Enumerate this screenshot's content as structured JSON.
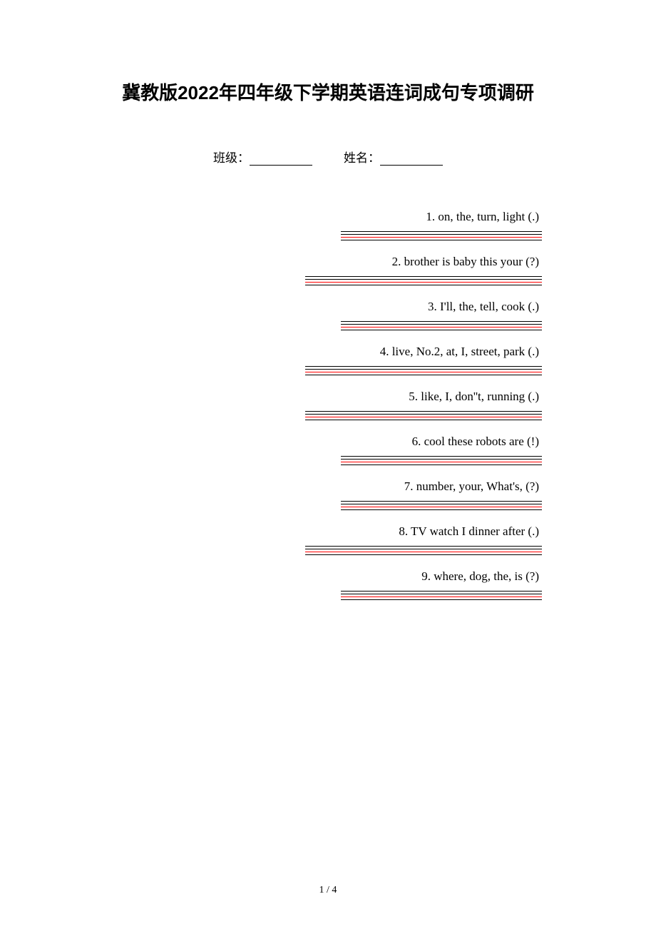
{
  "title": "冀教版2022年四年级下学期英语连词成句专项调研",
  "fields": {
    "class_label": "班级：",
    "name_label": "姓名："
  },
  "questions": [
    {
      "text": "1. on, the, turn, light (.)",
      "width": "short"
    },
    {
      "text": "2. brother  is  baby  this  your (?)",
      "width": "long"
    },
    {
      "text": "3. I'll, the, tell, cook (.)",
      "width": "short"
    },
    {
      "text": "4. live, No.2, at, I, street, park (.)",
      "width": "long"
    },
    {
      "text": "5. like, I, don''t, running (.)",
      "width": "long"
    },
    {
      "text": "6. cool these robots are (!)",
      "width": "short"
    },
    {
      "text": "7. number, your, What's, (?)",
      "width": "short"
    },
    {
      "text": "8. TV  watch  I  dinner  after (.)",
      "width": "long"
    },
    {
      "text": "9. where, dog, the, is (?)",
      "width": "short"
    }
  ],
  "page_num": "1 / 4",
  "colors": {
    "background": "#ffffff",
    "text": "#000000",
    "underline": "#000000",
    "redline": "#ff0000"
  }
}
